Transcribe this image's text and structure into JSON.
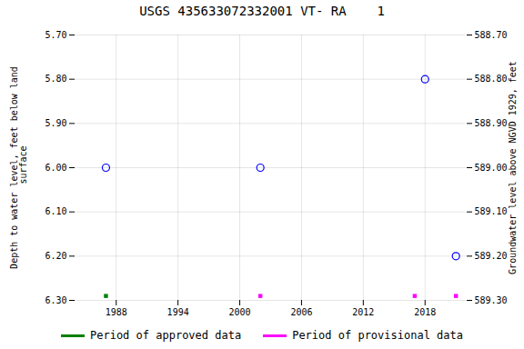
{
  "chart_data": {
    "type": "scatter",
    "title": "USGS 435633072332001 VT- RA    1",
    "ylabel": "Depth to water level, feet below land\n surface",
    "y2label": "Groundwater level above NGVD 1929, feet",
    "xlim": [
      1984,
      2022
    ],
    "xticks": [
      1988,
      1994,
      2000,
      2006,
      2012,
      2018
    ],
    "ylim": [
      6.3,
      5.7
    ],
    "yticks": [
      {
        "value": 5.7,
        "label": "5.70"
      },
      {
        "value": 5.8,
        "label": "5.80"
      },
      {
        "value": 5.9,
        "label": "5.90"
      },
      {
        "value": 6.0,
        "label": "6.00"
      },
      {
        "value": 6.1,
        "label": "6.10"
      },
      {
        "value": 6.2,
        "label": "6.20"
      },
      {
        "value": 6.3,
        "label": "6.30"
      }
    ],
    "y2lim": [
      589.3,
      588.7
    ],
    "y2ticks": [
      {
        "value": 588.7,
        "label": "588.70"
      },
      {
        "value": 588.8,
        "label": "588.80"
      },
      {
        "value": 588.9,
        "label": "588.90"
      },
      {
        "value": 589.0,
        "label": "589.00"
      },
      {
        "value": 589.1,
        "label": "589.10"
      },
      {
        "value": 589.2,
        "label": "589.20"
      },
      {
        "value": 589.3,
        "label": "589.30"
      }
    ],
    "grid": true,
    "legend": "bottom",
    "series": [
      {
        "color": "#0000FF",
        "marker": "circle",
        "x": [
          1987,
          2002,
          2018,
          2021
        ],
        "values": [
          6.0,
          6.0,
          5.8,
          6.2
        ]
      },
      {
        "name": "Period of approved data",
        "color": "#008000",
        "marker": "square",
        "x": [
          1987
        ],
        "values": [
          6.29
        ]
      },
      {
        "name": "Period of provisional data",
        "color": "#FF00FF",
        "marker": "square",
        "x": [
          2002,
          2017,
          2021
        ],
        "values": [
          6.29,
          6.29,
          6.29
        ]
      }
    ]
  }
}
